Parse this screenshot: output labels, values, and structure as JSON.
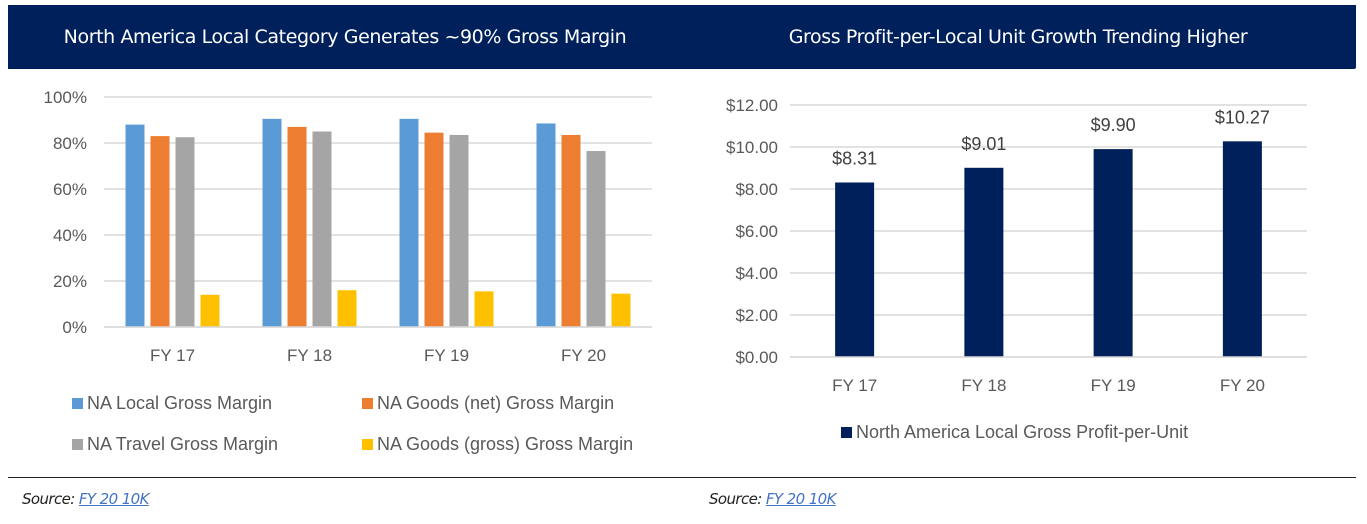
{
  "chart_data": [
    {
      "type": "bar",
      "title": "North America Local Category Generates ~90% Gross Margin",
      "categories": [
        "FY 17",
        "FY 18",
        "FY 19",
        "FY 20"
      ],
      "series": [
        {
          "name": "NA Local Gross Margin",
          "color": "#5b9bd5",
          "values": [
            88,
            90.5,
            90.5,
            88.5
          ]
        },
        {
          "name": "NA Goods (net) Gross Margin",
          "color": "#ed7d31",
          "values": [
            83,
            87,
            84.5,
            83.5
          ]
        },
        {
          "name": "NA Travel Gross Margin",
          "color": "#a5a5a5",
          "values": [
            82.5,
            85,
            83.5,
            76.5
          ]
        },
        {
          "name": "NA Goods (gross) Gross Margin",
          "color": "#ffc000",
          "values": [
            14,
            16,
            15.5,
            14.5
          ]
        }
      ],
      "yticks": [
        "0%",
        "20%",
        "40%",
        "60%",
        "80%",
        "100%"
      ],
      "ylim": [
        0,
        100
      ],
      "yunit": "%",
      "grid": true,
      "legend": "bottom",
      "xlabel": "",
      "ylabel": ""
    },
    {
      "type": "bar",
      "title": "Gross Profit-per-Local Unit Growth Trending Higher",
      "categories": [
        "FY 17",
        "FY 18",
        "FY 19",
        "FY 20"
      ],
      "series": [
        {
          "name": "North America Local Gross Profit-per-Unit",
          "color": "#00205b",
          "values": [
            8.31,
            9.01,
            9.9,
            10.27
          ]
        }
      ],
      "data_labels": [
        "$8.31",
        "$9.01",
        "$9.90",
        "$10.27"
      ],
      "yticks": [
        "$0.00",
        "$2.00",
        "$4.00",
        "$6.00",
        "$8.00",
        "$10.00",
        "$12.00"
      ],
      "ylim": [
        0,
        12
      ],
      "grid": true,
      "legend": "bottom",
      "xlabel": "",
      "ylabel": ""
    }
  ],
  "footer": {
    "left": {
      "prefix": "Source: ",
      "link": "FY 20 10K"
    },
    "right": {
      "prefix": "Source: ",
      "link": "FY 20 10K"
    }
  },
  "colors": {
    "header_bg": "#00205b",
    "gridline": "#d9d9d9",
    "link": "#4472c4"
  }
}
